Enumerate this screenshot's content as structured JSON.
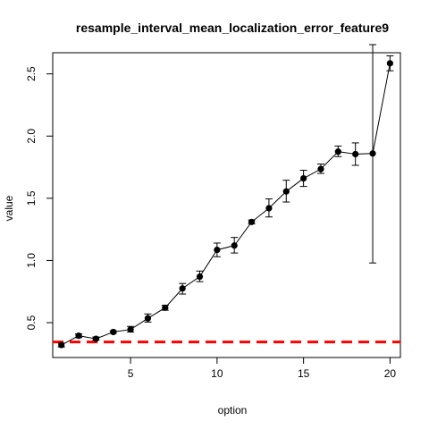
{
  "chart_data": {
    "type": "line",
    "title": "resample_interval_mean_localization_error_feature9",
    "xlabel": "option",
    "ylabel": "value",
    "xlim": [
      0.5,
      20.6
    ],
    "ylim": [
      0.22,
      2.67
    ],
    "xticks": [
      5,
      10,
      15,
      20
    ],
    "xtick_labels": [
      "5",
      "10",
      "15",
      "20"
    ],
    "yticks": [
      0.5,
      1.0,
      1.5,
      2.0,
      2.5
    ],
    "ytick_labels": [
      "0.5",
      "1.0",
      "1.5",
      "2.0",
      "2.5"
    ],
    "grid": false,
    "legend": "none",
    "series": [
      {
        "x": [
          1,
          2,
          3,
          4,
          5,
          6,
          7,
          8,
          9,
          10,
          11,
          12,
          13,
          14,
          15,
          16,
          17,
          18,
          19,
          20
        ],
        "values": [
          0.32,
          0.395,
          0.37,
          0.425,
          0.445,
          0.535,
          0.62,
          0.775,
          0.87,
          1.085,
          1.12,
          1.31,
          1.42,
          1.555,
          1.66,
          1.735,
          1.875,
          1.855,
          1.86,
          2.585
        ],
        "error_low": [
          0.305,
          0.38,
          0.36,
          0.415,
          0.425,
          0.505,
          0.6,
          0.73,
          0.83,
          1.03,
          1.06,
          1.295,
          1.35,
          1.47,
          1.595,
          1.7,
          1.835,
          1.765,
          0.98,
          2.525
        ],
        "error_high": [
          0.335,
          0.41,
          0.385,
          0.435,
          0.47,
          0.57,
          0.64,
          0.815,
          0.915,
          1.14,
          1.185,
          1.325,
          1.495,
          1.645,
          1.725,
          1.775,
          1.92,
          1.945,
          2.735,
          2.645
        ]
      }
    ],
    "reference_line": {
      "y": 0.345,
      "color": "#ff0000",
      "style": "dashed"
    },
    "colors": {
      "series": "#000000",
      "reference": "#ff0000"
    }
  }
}
